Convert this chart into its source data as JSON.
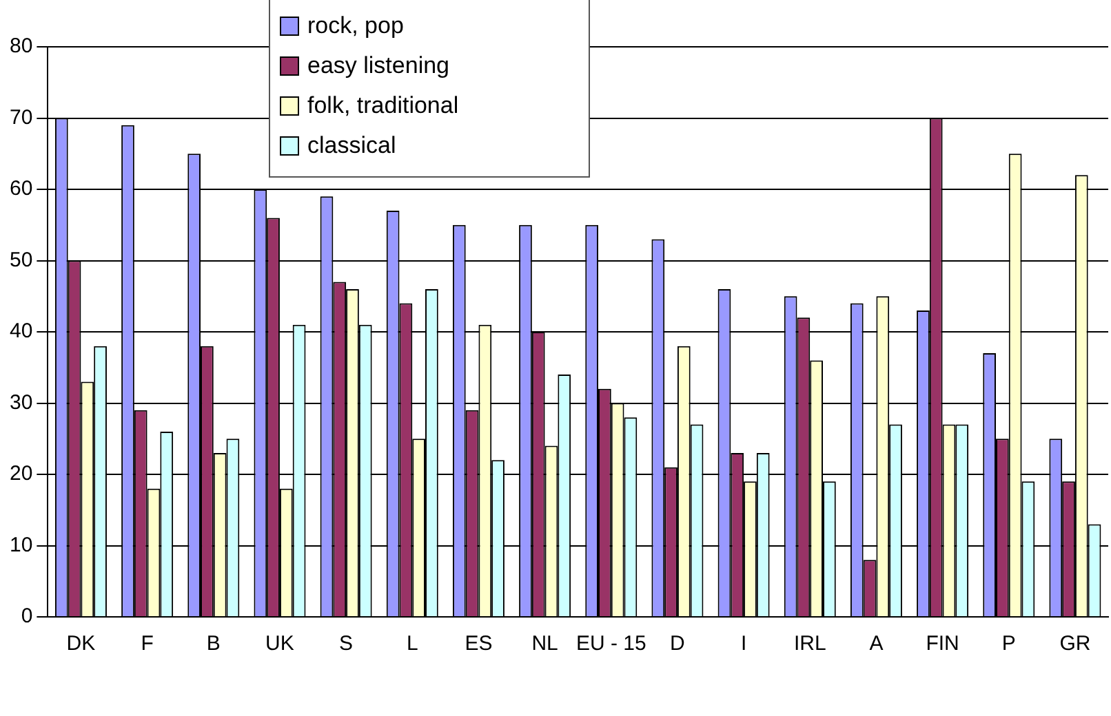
{
  "chart_data": {
    "type": "bar",
    "categories": [
      "DK",
      "F",
      "B",
      "UK",
      "S",
      "L",
      "ES",
      "NL",
      "EU - 15",
      "D",
      "I",
      "IRL",
      "A",
      "FIN",
      "P",
      "GR"
    ],
    "series": [
      {
        "name": "rock, pop",
        "color": "#9999ff",
        "values": [
          70,
          69,
          65,
          60,
          59,
          57,
          55,
          55,
          55,
          53,
          46,
          45,
          44,
          43,
          37,
          25
        ]
      },
      {
        "name": "easy listening",
        "color": "#993366",
        "values": [
          50,
          29,
          38,
          56,
          47,
          44,
          29,
          40,
          32,
          21,
          23,
          42,
          8,
          70,
          25,
          19
        ]
      },
      {
        "name": "folk, traditional",
        "color": "#ffffcc",
        "values": [
          33,
          18,
          23,
          18,
          46,
          25,
          41,
          24,
          30,
          38,
          19,
          36,
          45,
          27,
          65,
          62
        ]
      },
      {
        "name": "classical",
        "color": "#ccffff",
        "values": [
          38,
          26,
          25,
          41,
          41,
          46,
          22,
          34,
          28,
          27,
          23,
          19,
          27,
          27,
          19,
          13
        ]
      }
    ],
    "ylim": [
      0,
      80
    ],
    "yticks": [
      0,
      10,
      20,
      30,
      40,
      50,
      60,
      70,
      80
    ],
    "grid": "y",
    "legend": "top"
  }
}
